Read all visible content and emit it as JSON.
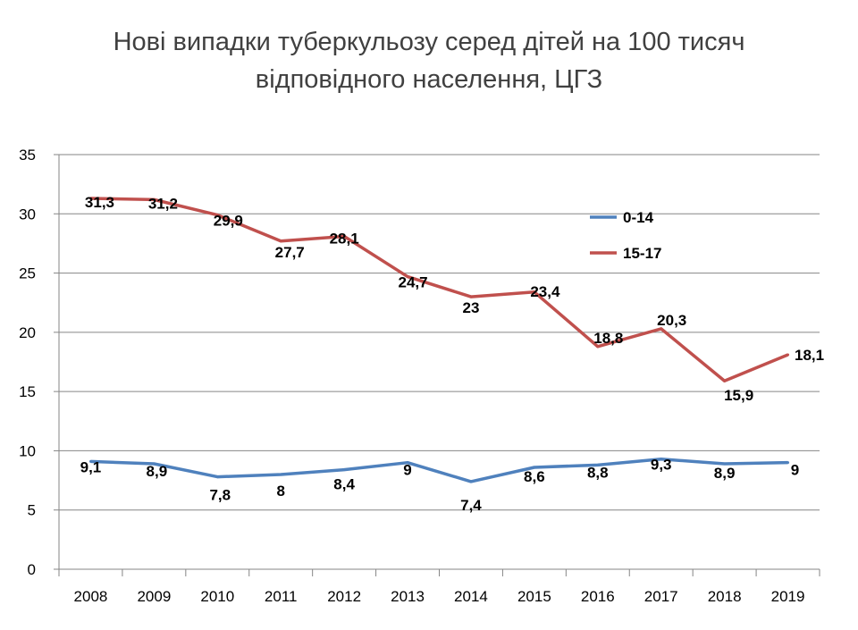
{
  "chart_data": {
    "type": "line",
    "title_line1": "Нові випадки туберкульозу серед дітей на 100 тисяч",
    "title_line2": "відповідного населення, ЦГЗ",
    "categories": [
      "2008",
      "2009",
      "2010",
      "2011",
      "2012",
      "2013",
      "2014",
      "2015",
      "2016",
      "2017",
      "2018",
      "2019"
    ],
    "series": [
      {
        "name": "0-14",
        "color": "#4f81bd",
        "values": [
          9.1,
          8.9,
          7.8,
          8.0,
          8.4,
          9.0,
          7.4,
          8.6,
          8.8,
          9.3,
          8.9,
          9.0
        ],
        "labels": [
          "9,1",
          "8,9",
          "7,8",
          "8",
          "8,4",
          "9",
          "7,4",
          "8,6",
          "8,8",
          "9,3",
          "8,9",
          "9"
        ]
      },
      {
        "name": "15-17",
        "color": "#c0504d",
        "values": [
          31.3,
          31.2,
          29.9,
          27.7,
          28.1,
          24.7,
          23.0,
          23.4,
          18.8,
          20.3,
          15.9,
          18.1
        ],
        "labels": [
          "31,3",
          "31,2",
          "29,9",
          "27,7",
          "28,1",
          "24,7",
          "23",
          "23,4",
          "18,8",
          "20,3",
          "15,9",
          "18,1"
        ]
      }
    ],
    "ylim": [
      0,
      35
    ],
    "yticks": [
      0,
      5,
      10,
      15,
      20,
      25,
      30,
      35
    ],
    "grid": true,
    "legend_position": "top-right",
    "xlabel": "",
    "ylabel": ""
  }
}
